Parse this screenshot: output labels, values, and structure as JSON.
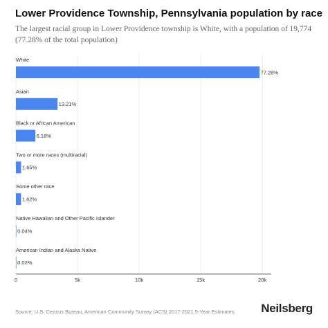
{
  "header": {
    "title": "Lower Providence Township, Pennsylvania population by race",
    "subtitle": "The largest racial group in Lower Providence township is White, with a population of 19,774 (77.28% of the total population)"
  },
  "footer": {
    "source": "Source: U.S. Census Bureau, American Community Survey (ACS) 2017-2021 5-Year Estimates",
    "brand": "Neilsberg"
  },
  "colors": {
    "bar": "#4a86f0",
    "grid": "#dddddd",
    "axis": "#333333"
  },
  "chart_data": {
    "type": "bar",
    "orientation": "horizontal",
    "categories": [
      "White",
      "Asian",
      "Black or African American",
      "Two or more races (multiracial)",
      "Some other race",
      "Native Hawaiian and Other Pacific Islander",
      "American Indian and Alaska Native"
    ],
    "values": [
      19774,
      3380,
      1581,
      422,
      414,
      10,
      5
    ],
    "data_labels": [
      "77.28%",
      "13.21%",
      "6.18%",
      "1.65%",
      "1.62%",
      "0.04%",
      "0.02%"
    ],
    "x_ticks": [
      0,
      5000,
      10000,
      15000,
      20000
    ],
    "x_tick_labels": [
      "0",
      "5k",
      "10k",
      "15k",
      "20k"
    ],
    "xlim": [
      0,
      20500
    ],
    "grid": true,
    "legend": "none"
  }
}
